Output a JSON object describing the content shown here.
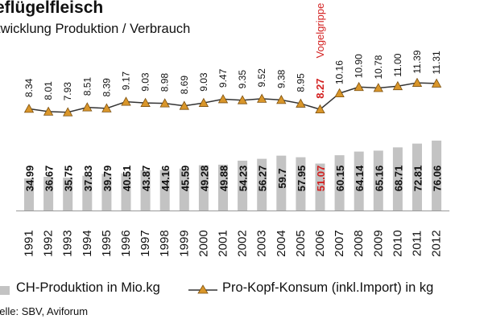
{
  "header": {
    "title": "eflügelfleisch",
    "subtitle": "twicklung Produktion / Verbrauch"
  },
  "legend": {
    "bar_label": "CH-Produktion in Mio.kg",
    "line_label": "Pro-Kopf-Konsum (inkl.Import) in kg"
  },
  "source": "uelle: SBV, Aviforum",
  "chart_data": {
    "type": "bar+line",
    "title": "eflügelfleisch",
    "subtitle": "twicklung Produktion / Verbrauch",
    "categories": [
      "1991",
      "1992",
      "1993",
      "1994",
      "1995",
      "1996",
      "1997",
      "1998",
      "1999",
      "2000",
      "2001",
      "2002",
      "2003",
      "2004",
      "2005",
      "2006",
      "2007",
      "2008",
      "2009",
      "2010",
      "2011",
      "2012"
    ],
    "series": [
      {
        "name": "CH-Produktion in Mio.kg",
        "kind": "bar",
        "values": [
          34.99,
          36.67,
          35.75,
          37.83,
          39.79,
          40.51,
          43.87,
          44.16,
          45.59,
          49.28,
          49.88,
          54.23,
          56.27,
          59.7,
          57.95,
          51.07,
          60.15,
          64.14,
          65.16,
          68.71,
          72.81,
          76.06
        ],
        "labels": [
          "34.99",
          "36.67",
          "35.75",
          "37.83",
          "39.79",
          "40.51",
          "43.87",
          "44.16",
          "45.59",
          "49.28",
          "49.88",
          "54.23",
          "56.27",
          "59.7",
          "57.95",
          "51.07",
          "60.15",
          "64.14",
          "65.16",
          "68.71",
          "72.81",
          "76.06"
        ],
        "color": "#c3c3c3"
      },
      {
        "name": "Pro-Kopf-Konsum (inkl.Import) in kg",
        "kind": "line",
        "values": [
          8.34,
          8.01,
          7.93,
          8.51,
          8.39,
          9.17,
          9.03,
          8.98,
          8.69,
          9.03,
          9.47,
          9.35,
          9.52,
          9.38,
          8.95,
          8.27,
          10.16,
          10.9,
          10.78,
          11.0,
          11.39,
          11.31
        ],
        "labels": [
          "8.34",
          "8.01",
          "7.93",
          "8.51",
          "8.39",
          "9.17",
          "9.03",
          "8.98",
          "8.69",
          "9.03",
          "9.47",
          "9.35",
          "9.52",
          "9.38",
          "8.95",
          "8.27",
          "10.16",
          "10.90",
          "10.78",
          "11.00",
          "11.39",
          "11.31"
        ],
        "color": "#333333",
        "marker_color": "#d9962a"
      }
    ],
    "highlight": {
      "category": "2006",
      "color": "#d32020"
    },
    "annotation": {
      "category": "2006",
      "text": "Vogelgrippe"
    },
    "bar_ylim": [
      0,
      90
    ],
    "line_ylim": [
      0,
      20
    ],
    "grid": false,
    "legend": "bottom"
  }
}
